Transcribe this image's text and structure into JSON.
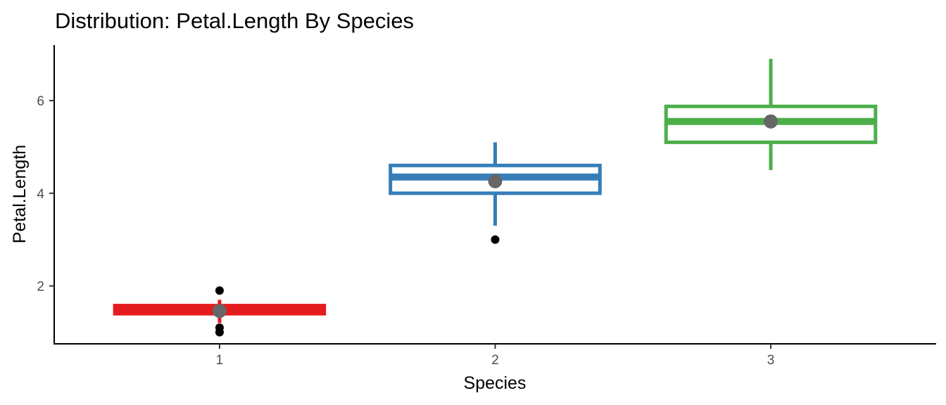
{
  "chart_data": {
    "type": "boxplot",
    "title": "Distribution: Petal.Length By Species",
    "xlabel": "Species",
    "ylabel": "Petal.Length",
    "categories": [
      "1",
      "2",
      "3"
    ],
    "ylim": [
      0.75,
      7.2
    ],
    "yticks": [
      2,
      4,
      6
    ],
    "grid": false,
    "legend": "none",
    "series": [
      {
        "category": "1",
        "color": "#e41a1c",
        "min": 1.2,
        "q1": 1.4,
        "median": 1.5,
        "q3": 1.575,
        "max": 1.7,
        "mean": 1.46,
        "outliers": [
          1.0,
          1.1,
          1.9
        ]
      },
      {
        "category": "2",
        "color": "#377eb8",
        "min": 3.3,
        "q1": 4.0,
        "median": 4.35,
        "q3": 4.6,
        "max": 5.1,
        "mean": 4.26,
        "outliers": [
          3.0
        ]
      },
      {
        "category": "3",
        "color": "#4daf4a",
        "min": 4.5,
        "q1": 5.1,
        "median": 5.55,
        "q3": 5.875,
        "max": 6.9,
        "mean": 5.55,
        "outliers": []
      }
    ],
    "mean_marker_color": "#666666",
    "outlier_color": "#000000"
  }
}
